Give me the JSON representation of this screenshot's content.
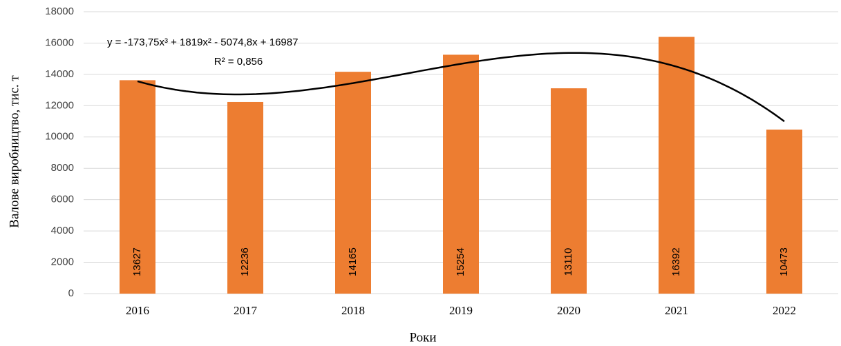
{
  "chart_data": {
    "type": "bar",
    "categories": [
      "2016",
      "2017",
      "2018",
      "2019",
      "2020",
      "2021",
      "2022"
    ],
    "values": [
      13627,
      12236,
      14165,
      15254,
      13110,
      16392,
      10473
    ],
    "color": "#ed7d31",
    "ylim": [
      0,
      18000
    ],
    "yticks": [
      0,
      2000,
      4000,
      6000,
      8000,
      10000,
      12000,
      14000,
      16000,
      18000
    ],
    "grid": true,
    "y_label": "Валове виробництво, тис. т",
    "x_label": "Роки",
    "trendline": {
      "type": "polynomial",
      "coefficients": [
        -173.75,
        1819,
        -5074.8,
        16987
      ],
      "color": "#000000",
      "equation": "y = -173,75x³ + 1819x² - 5074,8x + 16987",
      "r2": "R² = 0,856"
    }
  }
}
